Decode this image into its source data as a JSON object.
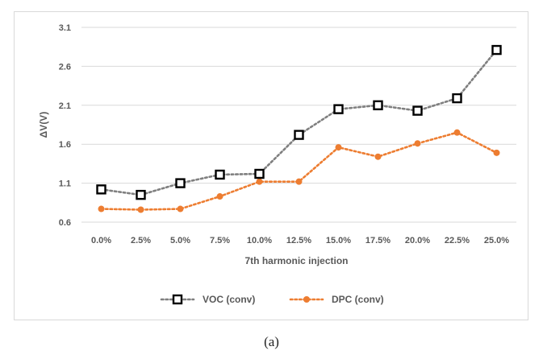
{
  "caption": "(a)",
  "chart_data": {
    "type": "line",
    "title": "",
    "xlabel": "7th harmonic injection",
    "ylabel": "ΔV(V)",
    "categories": [
      "0.0%",
      "2.5%",
      "5.0%",
      "7.5%",
      "10.0%",
      "12.5%",
      "15.0%",
      "17.5%",
      "20.0%",
      "22.5%",
      "25.0%"
    ],
    "ylim": [
      0.6,
      3.1
    ],
    "yticks": [
      "0.6",
      "1.1",
      "1.6",
      "2.1",
      "2.6",
      "3.1"
    ],
    "grid": true,
    "legend": "bottom",
    "series": [
      {
        "name": "VOC (conv)",
        "color": "#7f7f7f",
        "marker": "square",
        "values": [
          1.02,
          0.95,
          1.1,
          1.21,
          1.22,
          1.72,
          2.05,
          2.1,
          2.03,
          2.19,
          2.81
        ]
      },
      {
        "name": "DPC (conv)",
        "color": "#ed7d31",
        "marker": "circle",
        "values": [
          0.77,
          0.76,
          0.77,
          0.93,
          1.12,
          1.12,
          1.56,
          1.44,
          1.61,
          1.75,
          1.49
        ]
      }
    ]
  }
}
